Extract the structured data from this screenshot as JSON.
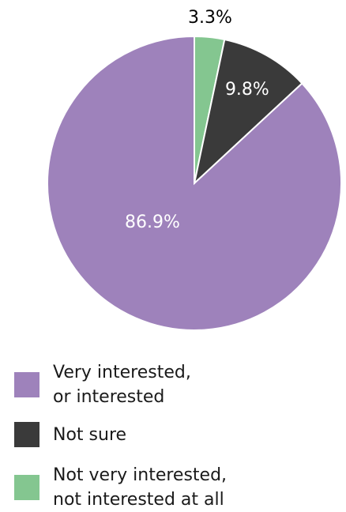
{
  "chart_data": {
    "type": "pie",
    "slices": [
      {
        "label": "Very interested,\nor interested",
        "value": 86.9,
        "value_label": "86.9%",
        "color": "#9e82bb",
        "label_color": "#ffffff"
      },
      {
        "label": "Not sure",
        "value": 9.8,
        "value_label": "9.8%",
        "color": "#3a3a3a",
        "label_color": "#ffffff"
      },
      {
        "label": "Not very interested,\nnot interested at all",
        "value": 3.3,
        "value_label": "3.3%",
        "color": "#84c690",
        "label_color": "#000000"
      }
    ],
    "legend_position": "bottom"
  }
}
